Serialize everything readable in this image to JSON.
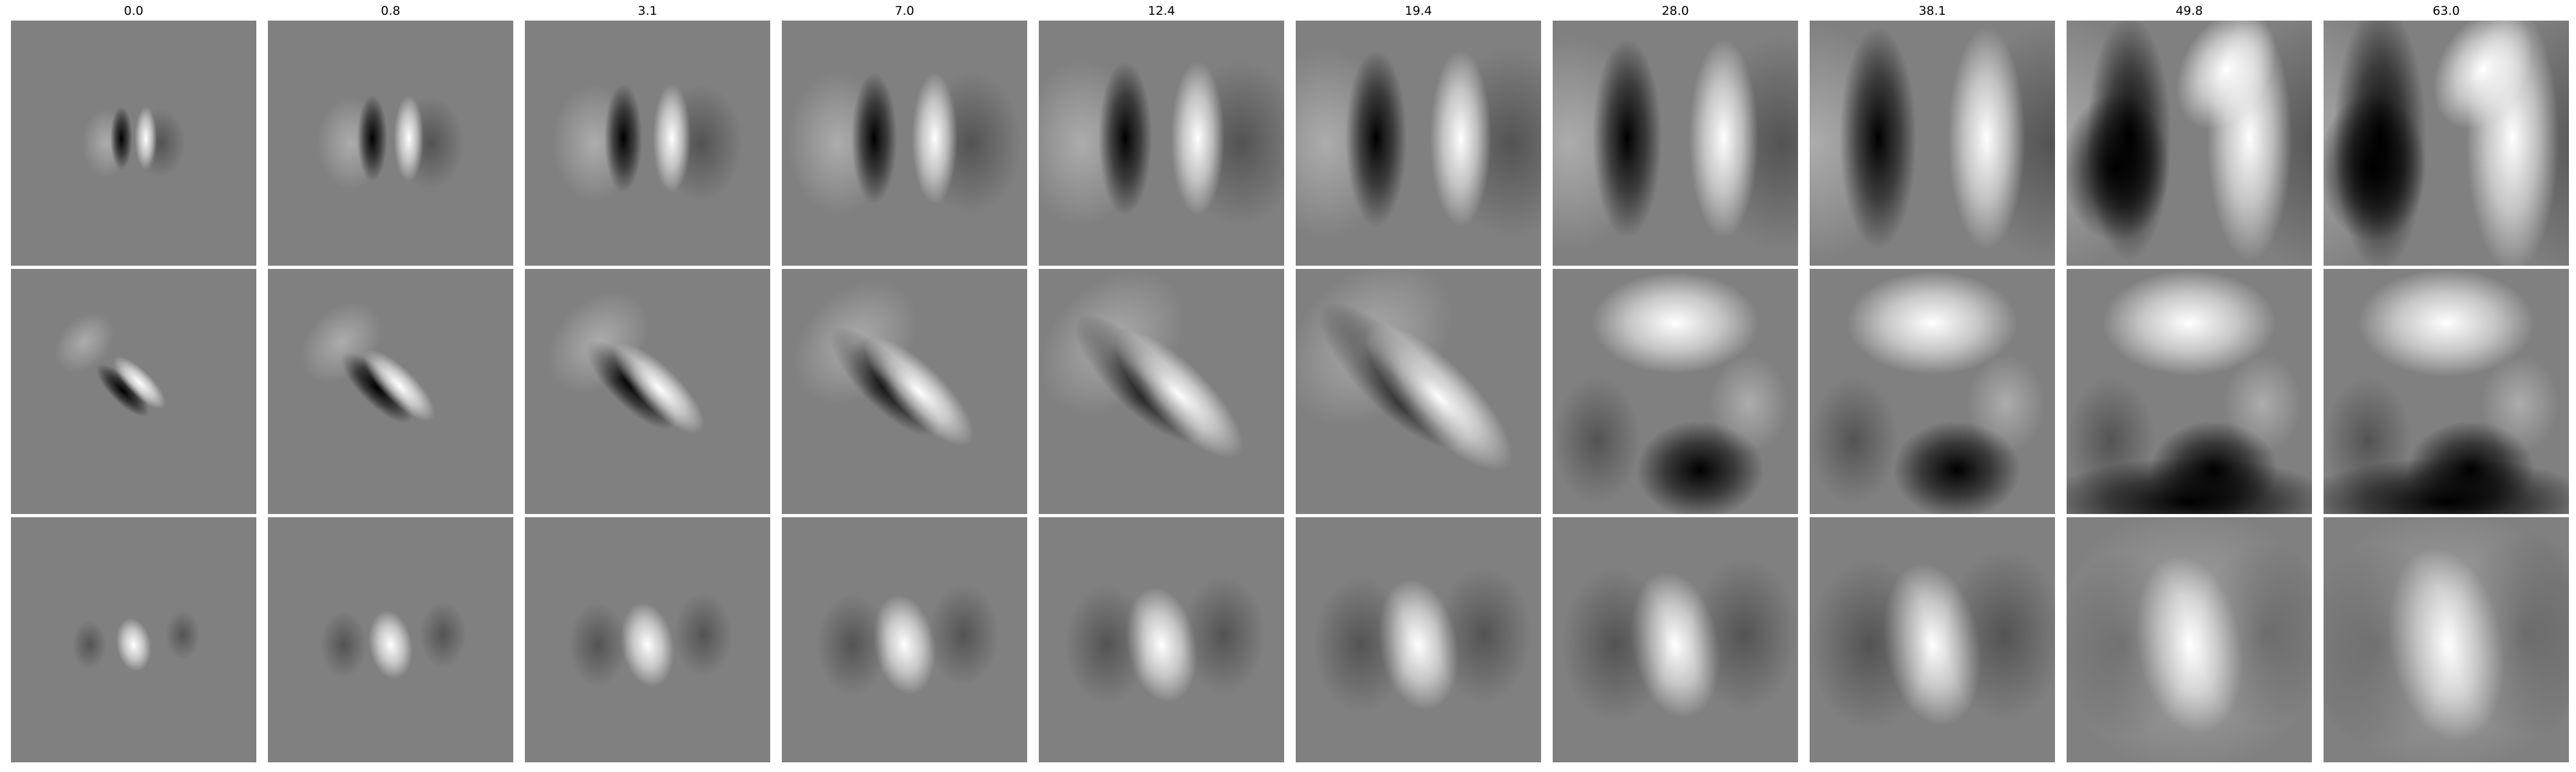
{
  "figure": {
    "column_titles": [
      "0.0",
      "0.8",
      "3.1",
      "7.0",
      "12.4",
      "19.4",
      "28.0",
      "38.1",
      "49.8",
      "63.0"
    ],
    "background_color": "#808080",
    "rows": [
      {
        "pattern": "vertical-dipole",
        "tone_progression": "sharp-to-diffuse"
      },
      {
        "pattern": "diagonal-dipole",
        "tone_progression": "sharp-to-diffuse"
      },
      {
        "pattern": "central-bright-blob",
        "tone_progression": "sharp-to-diffuse"
      }
    ]
  }
}
